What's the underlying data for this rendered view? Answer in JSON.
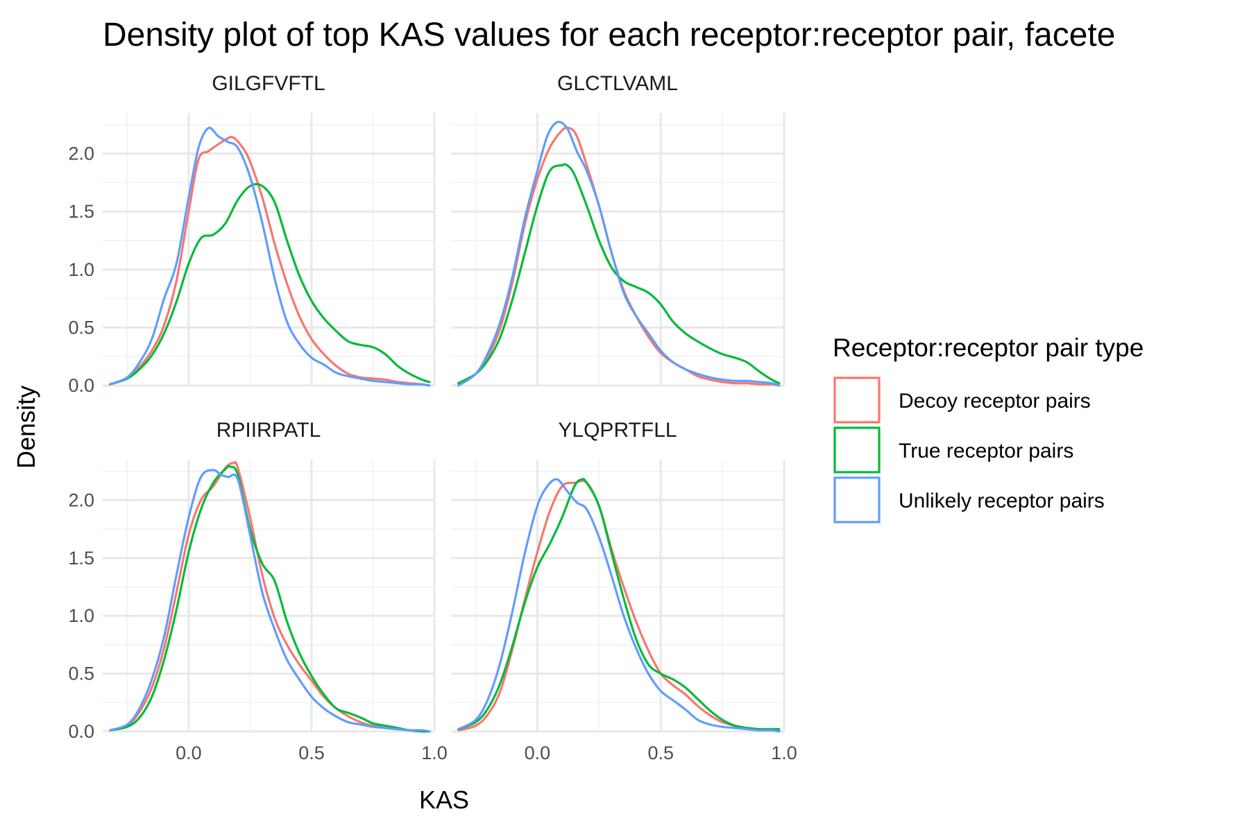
{
  "chart_data": {
    "type": "line",
    "title": "Density plot of top KAS values for each receptor:receptor pair, facete",
    "xlabel": "KAS",
    "ylabel": "Density",
    "xlim": [
      -0.35,
      1.0
    ],
    "ylim": [
      0,
      2.35
    ],
    "x_ticks": [
      "0.0",
      "0.5",
      "1.0"
    ],
    "x_tick_values": [
      0.0,
      0.5,
      1.0
    ],
    "y_ticks": [
      "0.0",
      "0.5",
      "1.0",
      "1.5",
      "2.0"
    ],
    "y_tick_values": [
      0.0,
      0.5,
      1.0,
      1.5,
      2.0
    ],
    "grid": true,
    "legend": {
      "title": "Receptor:receptor pair type",
      "position": "right",
      "entries": [
        {
          "label": "Decoy receptor pairs",
          "color": "#F8766D"
        },
        {
          "label": "True receptor pairs",
          "color": "#00BA38"
        },
        {
          "label": "Unlikely receptor pairs",
          "color": "#619CFF"
        }
      ]
    },
    "facets": [
      {
        "name": "GILGFVFTL",
        "series": [
          {
            "name": "Decoy receptor pairs",
            "color": "#F8766D",
            "x": [
              -0.32,
              -0.25,
              -0.2,
              -0.15,
              -0.1,
              -0.05,
              0.0,
              0.04,
              0.08,
              0.12,
              0.15,
              0.18,
              0.22,
              0.25,
              0.3,
              0.35,
              0.4,
              0.45,
              0.5,
              0.55,
              0.6,
              0.65,
              0.7,
              0.75,
              0.8,
              0.85,
              0.9,
              0.95,
              0.98
            ],
            "y": [
              0.01,
              0.06,
              0.16,
              0.3,
              0.52,
              0.9,
              1.5,
              1.95,
              2.02,
              2.08,
              2.12,
              2.14,
              2.05,
              1.93,
              1.62,
              1.22,
              0.88,
              0.6,
              0.4,
              0.27,
              0.17,
              0.1,
              0.07,
              0.06,
              0.05,
              0.03,
              0.02,
              0.01,
              0.0
            ]
          },
          {
            "name": "True receptor pairs",
            "color": "#00BA38",
            "x": [
              -0.32,
              -0.25,
              -0.2,
              -0.15,
              -0.1,
              -0.05,
              0.0,
              0.05,
              0.1,
              0.15,
              0.2,
              0.25,
              0.3,
              0.35,
              0.4,
              0.45,
              0.5,
              0.55,
              0.6,
              0.65,
              0.7,
              0.75,
              0.8,
              0.85,
              0.9,
              0.95,
              0.98
            ],
            "y": [
              0.01,
              0.06,
              0.14,
              0.26,
              0.45,
              0.72,
              1.05,
              1.27,
              1.3,
              1.4,
              1.6,
              1.72,
              1.72,
              1.58,
              1.25,
              0.95,
              0.73,
              0.58,
              0.47,
              0.38,
              0.35,
              0.33,
              0.27,
              0.17,
              0.1,
              0.05,
              0.03
            ]
          },
          {
            "name": "Unlikely receptor pairs",
            "color": "#619CFF",
            "x": [
              -0.32,
              -0.25,
              -0.2,
              -0.15,
              -0.1,
              -0.05,
              0.0,
              0.04,
              0.08,
              0.12,
              0.16,
              0.2,
              0.25,
              0.3,
              0.35,
              0.4,
              0.45,
              0.5,
              0.55,
              0.6,
              0.65,
              0.7,
              0.75,
              0.8,
              0.85,
              0.9,
              0.95,
              0.98
            ],
            "y": [
              0.01,
              0.07,
              0.2,
              0.4,
              0.75,
              1.05,
              1.62,
              2.05,
              2.22,
              2.15,
              2.1,
              2.05,
              1.8,
              1.4,
              0.92,
              0.55,
              0.36,
              0.24,
              0.18,
              0.11,
              0.08,
              0.06,
              0.04,
              0.03,
              0.02,
              0.01,
              0.01,
              0.0
            ]
          }
        ]
      },
      {
        "name": "GLCTLVAML",
        "series": [
          {
            "name": "Decoy receptor pairs",
            "color": "#F8766D",
            "x": [
              -0.32,
              -0.25,
              -0.2,
              -0.15,
              -0.1,
              -0.05,
              0.0,
              0.05,
              0.1,
              0.13,
              0.16,
              0.2,
              0.25,
              0.3,
              0.35,
              0.4,
              0.45,
              0.5,
              0.55,
              0.6,
              0.65,
              0.7,
              0.75,
              0.8,
              0.85,
              0.9,
              0.95,
              0.98
            ],
            "y": [
              0.02,
              0.1,
              0.25,
              0.5,
              0.9,
              1.4,
              1.78,
              2.05,
              2.2,
              2.22,
              2.15,
              1.9,
              1.55,
              1.15,
              0.82,
              0.6,
              0.42,
              0.28,
              0.2,
              0.14,
              0.08,
              0.05,
              0.03,
              0.02,
              0.02,
              0.01,
              0.01,
              0.0
            ]
          },
          {
            "name": "True receptor pairs",
            "color": "#00BA38",
            "x": [
              -0.32,
              -0.25,
              -0.2,
              -0.15,
              -0.1,
              -0.05,
              0.0,
              0.05,
              0.1,
              0.12,
              0.15,
              0.2,
              0.25,
              0.3,
              0.35,
              0.4,
              0.45,
              0.5,
              0.55,
              0.6,
              0.65,
              0.7,
              0.75,
              0.8,
              0.85,
              0.9,
              0.95,
              0.98
            ],
            "y": [
              0.02,
              0.1,
              0.22,
              0.42,
              0.75,
              1.15,
              1.55,
              1.85,
              1.9,
              1.9,
              1.82,
              1.55,
              1.25,
              1.02,
              0.9,
              0.85,
              0.8,
              0.7,
              0.55,
              0.45,
              0.38,
              0.32,
              0.27,
              0.24,
              0.2,
              0.12,
              0.05,
              0.02
            ]
          },
          {
            "name": "Unlikely receptor pairs",
            "color": "#619CFF",
            "x": [
              -0.32,
              -0.25,
              -0.2,
              -0.15,
              -0.1,
              -0.05,
              0.0,
              0.04,
              0.08,
              0.12,
              0.16,
              0.2,
              0.25,
              0.3,
              0.35,
              0.4,
              0.45,
              0.5,
              0.55,
              0.6,
              0.65,
              0.7,
              0.75,
              0.8,
              0.85,
              0.9,
              0.95,
              0.98
            ],
            "y": [
              0.0,
              0.1,
              0.28,
              0.55,
              0.95,
              1.45,
              1.85,
              2.15,
              2.27,
              2.22,
              2.02,
              1.85,
              1.55,
              1.15,
              0.8,
              0.6,
              0.45,
              0.3,
              0.2,
              0.14,
              0.1,
              0.07,
              0.05,
              0.04,
              0.04,
              0.03,
              0.02,
              0.0
            ]
          }
        ]
      },
      {
        "name": "RPIIRPATL",
        "series": [
          {
            "name": "Decoy receptor pairs",
            "color": "#F8766D",
            "x": [
              -0.32,
              -0.25,
              -0.2,
              -0.15,
              -0.1,
              -0.05,
              0.0,
              0.05,
              0.1,
              0.15,
              0.18,
              0.2,
              0.25,
              0.3,
              0.35,
              0.4,
              0.45,
              0.5,
              0.55,
              0.6,
              0.65,
              0.7,
              0.75,
              0.8,
              0.85,
              0.9,
              0.95,
              0.98
            ],
            "y": [
              0.01,
              0.05,
              0.17,
              0.38,
              0.72,
              1.2,
              1.7,
              2.0,
              2.12,
              2.28,
              2.32,
              2.28,
              1.85,
              1.35,
              0.98,
              0.75,
              0.58,
              0.44,
              0.3,
              0.2,
              0.13,
              0.08,
              0.05,
              0.03,
              0.02,
              0.01,
              0.01,
              0.0
            ]
          },
          {
            "name": "True receptor pairs",
            "color": "#00BA38",
            "x": [
              -0.32,
              -0.25,
              -0.2,
              -0.15,
              -0.1,
              -0.05,
              0.0,
              0.05,
              0.1,
              0.15,
              0.17,
              0.2,
              0.25,
              0.3,
              0.35,
              0.4,
              0.45,
              0.5,
              0.55,
              0.6,
              0.65,
              0.7,
              0.75,
              0.8,
              0.85,
              0.9,
              0.95,
              0.98
            ],
            "y": [
              0.01,
              0.04,
              0.12,
              0.3,
              0.62,
              1.05,
              1.55,
              1.92,
              2.15,
              2.27,
              2.29,
              2.22,
              1.75,
              1.45,
              1.3,
              0.95,
              0.68,
              0.48,
              0.32,
              0.2,
              0.16,
              0.12,
              0.07,
              0.05,
              0.03,
              0.01,
              0.0,
              0.0
            ]
          },
          {
            "name": "Unlikely receptor pairs",
            "color": "#619CFF",
            "x": [
              -0.32,
              -0.25,
              -0.2,
              -0.15,
              -0.1,
              -0.05,
              0.0,
              0.05,
              0.1,
              0.13,
              0.16,
              0.2,
              0.25,
              0.3,
              0.35,
              0.4,
              0.45,
              0.5,
              0.55,
              0.6,
              0.65,
              0.7,
              0.75,
              0.8,
              0.85,
              0.9,
              0.95,
              0.98
            ],
            "y": [
              0.01,
              0.06,
              0.2,
              0.45,
              0.82,
              1.35,
              1.85,
              2.2,
              2.26,
              2.22,
              2.2,
              2.18,
              1.7,
              1.2,
              0.88,
              0.62,
              0.45,
              0.3,
              0.2,
              0.13,
              0.08,
              0.06,
              0.04,
              0.03,
              0.02,
              0.01,
              0.01,
              0.0
            ]
          }
        ]
      },
      {
        "name": "YLQPRTFLL",
        "series": [
          {
            "name": "Decoy receptor pairs",
            "color": "#F8766D",
            "x": [
              -0.32,
              -0.25,
              -0.2,
              -0.15,
              -0.1,
              -0.05,
              0.0,
              0.05,
              0.1,
              0.15,
              0.2,
              0.25,
              0.3,
              0.35,
              0.4,
              0.45,
              0.5,
              0.55,
              0.6,
              0.65,
              0.7,
              0.75,
              0.8,
              0.85,
              0.9,
              0.95,
              0.98
            ],
            "y": [
              0.01,
              0.05,
              0.15,
              0.35,
              0.72,
              1.15,
              1.55,
              1.9,
              2.12,
              2.15,
              2.15,
              1.95,
              1.58,
              1.25,
              0.95,
              0.7,
              0.5,
              0.4,
              0.32,
              0.22,
              0.14,
              0.08,
              0.05,
              0.03,
              0.02,
              0.01,
              0.01
            ]
          },
          {
            "name": "True receptor pairs",
            "color": "#00BA38",
            "x": [
              -0.32,
              -0.25,
              -0.2,
              -0.15,
              -0.1,
              -0.05,
              0.0,
              0.05,
              0.1,
              0.15,
              0.18,
              0.2,
              0.25,
              0.3,
              0.35,
              0.4,
              0.45,
              0.5,
              0.55,
              0.6,
              0.65,
              0.7,
              0.75,
              0.8,
              0.85,
              0.9,
              0.95,
              0.98
            ],
            "y": [
              0.02,
              0.08,
              0.2,
              0.42,
              0.75,
              1.12,
              1.42,
              1.62,
              1.85,
              2.12,
              2.18,
              2.15,
              1.95,
              1.55,
              1.15,
              0.8,
              0.58,
              0.5,
              0.45,
              0.38,
              0.28,
              0.18,
              0.1,
              0.05,
              0.03,
              0.02,
              0.02,
              0.02
            ]
          },
          {
            "name": "Unlikely receptor pairs",
            "color": "#619CFF",
            "x": [
              -0.32,
              -0.25,
              -0.2,
              -0.15,
              -0.1,
              -0.05,
              0.0,
              0.04,
              0.08,
              0.12,
              0.16,
              0.2,
              0.25,
              0.3,
              0.35,
              0.4,
              0.45,
              0.5,
              0.55,
              0.6,
              0.65,
              0.7,
              0.75,
              0.8,
              0.85,
              0.9,
              0.95,
              0.98
            ],
            "y": [
              0.02,
              0.1,
              0.28,
              0.6,
              1.05,
              1.55,
              1.95,
              2.12,
              2.18,
              2.08,
              1.98,
              1.92,
              1.68,
              1.35,
              1.0,
              0.72,
              0.5,
              0.35,
              0.27,
              0.19,
              0.1,
              0.06,
              0.04,
              0.03,
              0.02,
              0.01,
              0.01,
              0.0
            ]
          }
        ]
      }
    ]
  }
}
